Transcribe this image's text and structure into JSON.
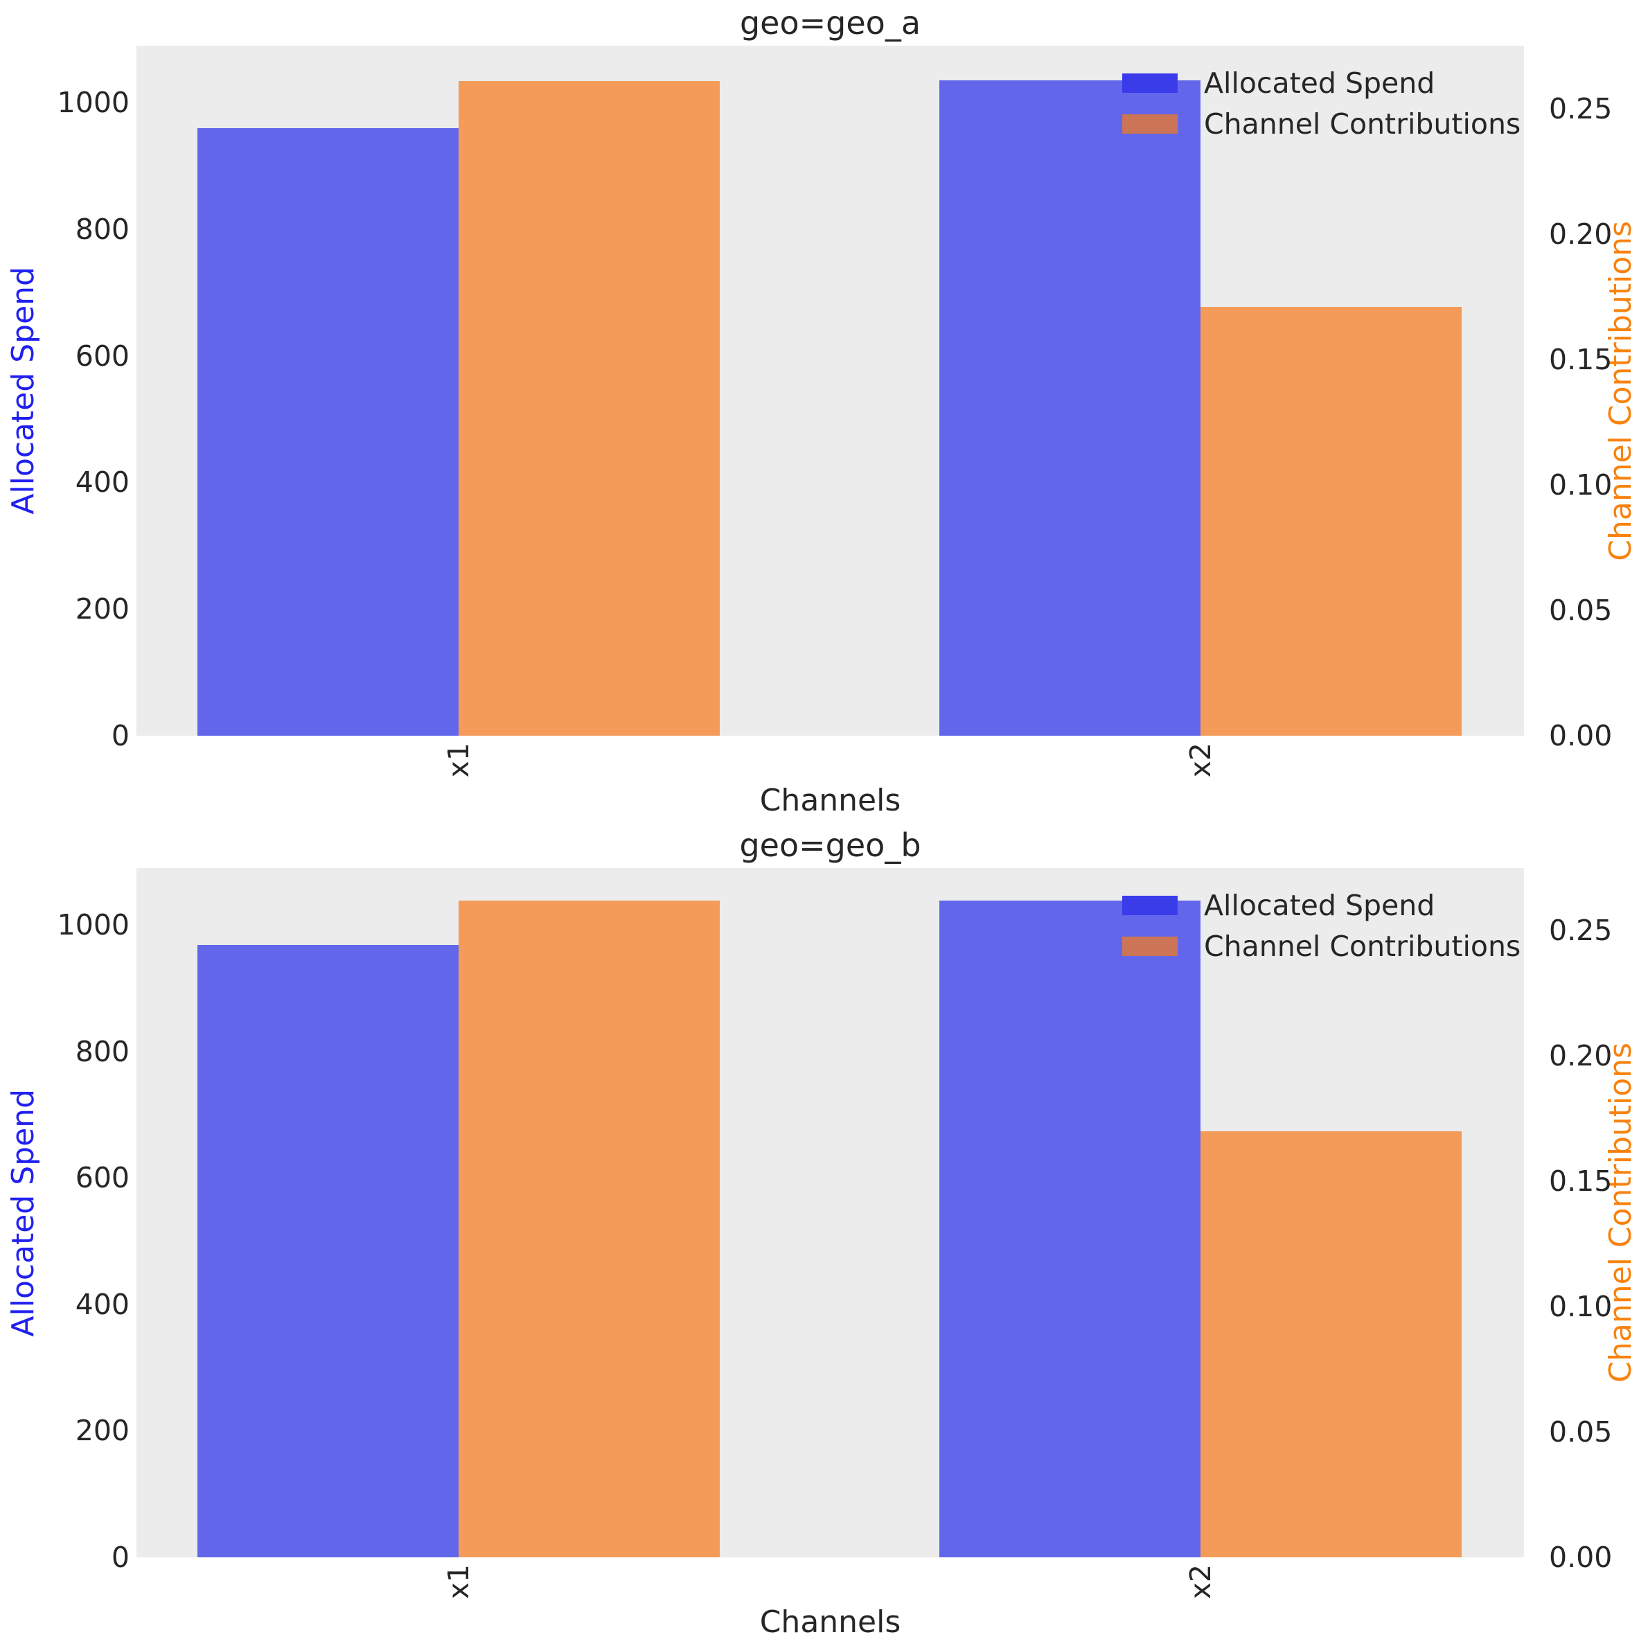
{
  "figure": {
    "background": "#ffffff",
    "axes_background": "#ececec",
    "text_color": "#262626"
  },
  "chart_data": [
    {
      "type": "bar",
      "title": "geo=geo_a",
      "xlabel": "Channels",
      "categories": [
        "x1",
        "x2"
      ],
      "series": [
        {
          "name": "Allocated Spend",
          "axis": "left",
          "bar_color": "#6266eb",
          "legend_swatch_color": "#3a3cea",
          "values": [
            960,
            1035
          ]
        },
        {
          "name": "Channel Contributions",
          "axis": "right",
          "bar_color": "#f49b59",
          "legend_swatch_color": "#cc7456",
          "values": [
            0.261,
            0.171
          ]
        }
      ],
      "left_axis": {
        "label": "Allocated Spend",
        "label_color": "#2020f0",
        "tick_labels": [
          "0",
          "200",
          "400",
          "600",
          "800",
          "1000"
        ],
        "tick_values": [
          0,
          200,
          400,
          600,
          800,
          1000
        ],
        "range": [
          0,
          1090
        ]
      },
      "right_axis": {
        "label": "Channel Contributions",
        "label_color": "#f8820e",
        "tick_labels": [
          "0.00",
          "0.05",
          "0.10",
          "0.15",
          "0.20",
          "0.25"
        ],
        "tick_values": [
          0,
          0.05,
          0.1,
          0.15,
          0.2,
          0.25
        ],
        "range": [
          0,
          0.275
        ]
      },
      "legend": {
        "position": "upper right",
        "entries": [
          "Allocated Spend",
          "Channel Contributions"
        ]
      },
      "grid": false
    },
    {
      "type": "bar",
      "title": "geo=geo_b",
      "xlabel": "Channels",
      "categories": [
        "x1",
        "x2"
      ],
      "series": [
        {
          "name": "Allocated Spend",
          "axis": "left",
          "bar_color": "#6266eb",
          "legend_swatch_color": "#3a3cea",
          "values": [
            968,
            1038
          ]
        },
        {
          "name": "Channel Contributions",
          "axis": "right",
          "bar_color": "#f49b59",
          "legend_swatch_color": "#cc7456",
          "values": [
            0.262,
            0.17
          ]
        }
      ],
      "left_axis": {
        "label": "Allocated Spend",
        "label_color": "#2020f0",
        "tick_labels": [
          "0",
          "200",
          "400",
          "600",
          "800",
          "1000"
        ],
        "tick_values": [
          0,
          200,
          400,
          600,
          800,
          1000
        ],
        "range": [
          0,
          1090
        ]
      },
      "right_axis": {
        "label": "Channel Contributions",
        "label_color": "#f8820e",
        "tick_labels": [
          "0.00",
          "0.05",
          "0.10",
          "0.15",
          "0.20",
          "0.25"
        ],
        "tick_values": [
          0,
          0.05,
          0.1,
          0.15,
          0.2,
          0.25
        ],
        "range": [
          0,
          0.275
        ]
      },
      "legend": {
        "position": "upper right",
        "entries": [
          "Allocated Spend",
          "Channel Contributions"
        ]
      },
      "grid": false
    }
  ]
}
